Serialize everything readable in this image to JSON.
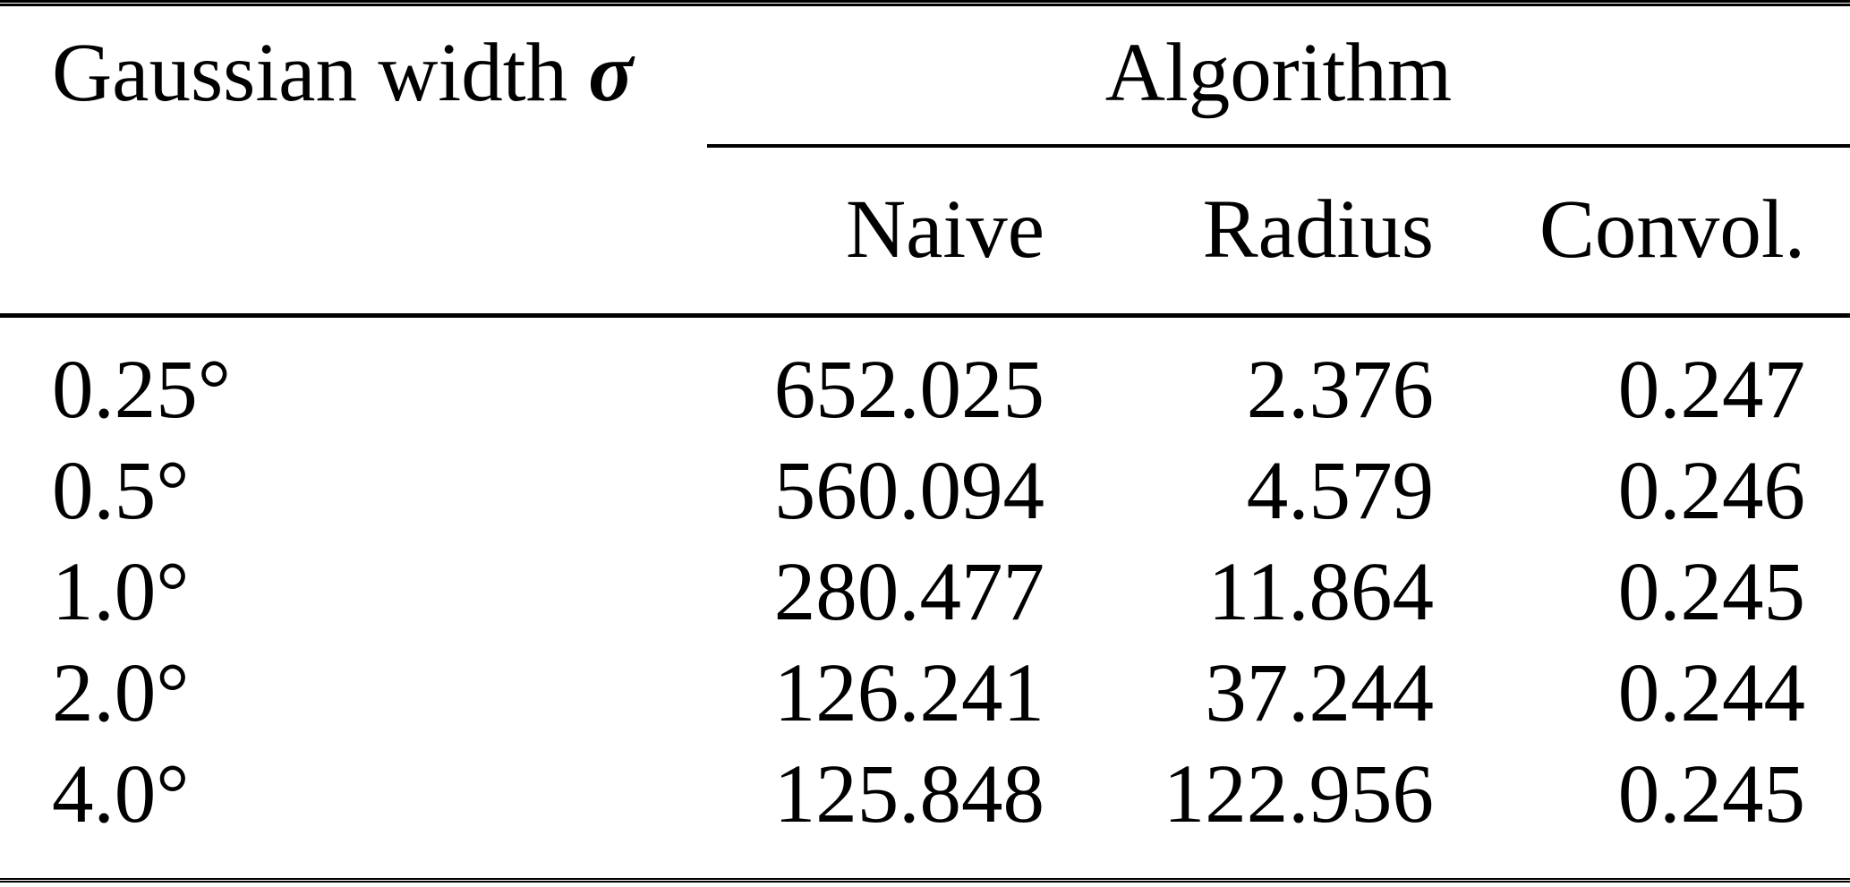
{
  "table": {
    "row_group_header": {
      "text": "Gaussian width",
      "symbol": "σ"
    },
    "column_group_header": "Algorithm",
    "column_headers": {
      "naive": "Naive",
      "radius": "Radius",
      "convol": "Convol."
    },
    "rows": [
      {
        "sigma": "0.25°",
        "naive": "652.025",
        "radius": "2.376",
        "convol": "0.247"
      },
      {
        "sigma": "0.5°",
        "naive": "560.094",
        "radius": "4.579",
        "convol": "0.246"
      },
      {
        "sigma": "1.0°",
        "naive": "280.477",
        "radius": "11.864",
        "convol": "0.245"
      },
      {
        "sigma": "2.0°",
        "naive": "126.241",
        "radius": "37.244",
        "convol": "0.244"
      },
      {
        "sigma": "4.0°",
        "naive": "125.848",
        "radius": "122.956",
        "convol": "0.245"
      }
    ]
  },
  "chart_data": {
    "type": "table",
    "columns": [
      "Gaussian width σ",
      "Naive",
      "Radius",
      "Convol."
    ],
    "rows": [
      [
        "0.25°",
        652.025,
        2.376,
        0.247
      ],
      [
        "0.5°",
        560.094,
        4.579,
        0.246
      ],
      [
        "1.0°",
        280.477,
        11.864,
        0.245
      ],
      [
        "2.0°",
        126.241,
        37.244,
        0.244
      ],
      [
        "4.0°",
        125.848,
        122.956,
        0.245
      ]
    ]
  },
  "colors": {
    "rule": "#000000",
    "text": "#000000",
    "background": "#ffffff"
  }
}
